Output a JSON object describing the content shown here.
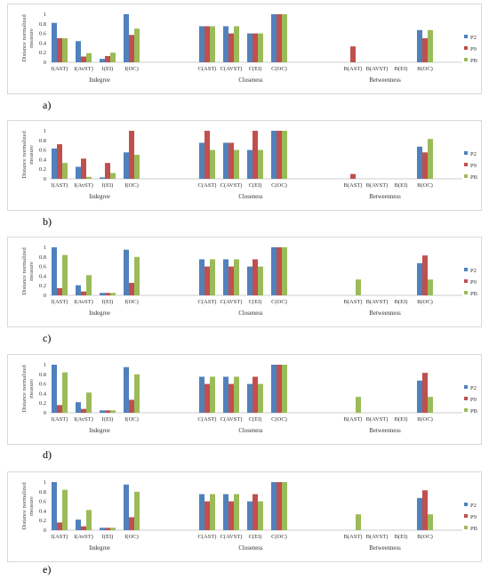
{
  "colors": {
    "P2": "#4f81bd",
    "P9": "#c0504d",
    "PB": "#9bbb59",
    "axis": "#999999"
  },
  "chart_data": [
    {
      "type": "bar",
      "panel_label": "a)",
      "ylabel": "Distance normalized measure",
      "ylim": [
        0,
        1
      ],
      "yticks": [
        "0",
        "0.2",
        "0.4",
        "0.6",
        "0.8",
        "1"
      ],
      "group_labels": [
        "Indegree",
        "Closeness",
        "Betweenness"
      ],
      "categories": [
        "I(AST)",
        "I(AvST)",
        "I(EI)",
        "I(OC)",
        "C(AST)",
        "C(AVST)",
        "C(EI)",
        "C(OC)",
        "B(AST)",
        "B(AVST)",
        "B(EI)",
        "B(OC)"
      ],
      "series": [
        {
          "name": "P2",
          "values": [
            0.82,
            0.44,
            0.07,
            1.0,
            0.75,
            0.75,
            0.6,
            1.0,
            0,
            0,
            0,
            0.67
          ]
        },
        {
          "name": "P9",
          "values": [
            0.5,
            0.12,
            0.13,
            0.57,
            0.75,
            0.6,
            0.6,
            1.0,
            0.33,
            0,
            0,
            0.5
          ]
        },
        {
          "name": "PB",
          "values": [
            0.5,
            0.19,
            0.2,
            0.7,
            0.75,
            0.75,
            0.6,
            1.0,
            0,
            0,
            0,
            0.67
          ]
        }
      ]
    },
    {
      "type": "bar",
      "panel_label": "b)",
      "ylabel": "Distance normalized measure",
      "ylim": [
        0,
        1
      ],
      "yticks": [
        "0",
        "0.2",
        "0.4",
        "0.6",
        "0.8",
        "1"
      ],
      "group_labels": [
        "Indegree",
        "Closeness",
        "Betweenness"
      ],
      "categories": [
        "I(AST)",
        "I(AvST)",
        "I(EI)",
        "I(OC)",
        "C(AST)",
        "C(AVST)",
        "C(EI)",
        "C(OC)",
        "B(AST)",
        "B(AVST)",
        "B(EI)",
        "B(OC)"
      ],
      "series": [
        {
          "name": "P2",
          "values": [
            0.63,
            0.25,
            0.03,
            0.55,
            0.75,
            0.75,
            0.6,
            1.0,
            0,
            0,
            0,
            0.67
          ]
        },
        {
          "name": "P9",
          "values": [
            0.72,
            0.42,
            0.33,
            1.0,
            1.0,
            0.75,
            1.0,
            1.0,
            0.1,
            0,
            0,
            0.55
          ]
        },
        {
          "name": "PB",
          "values": [
            0.33,
            0.04,
            0.12,
            0.5,
            0.6,
            0.6,
            0.6,
            1.0,
            0,
            0,
            0,
            0.83
          ]
        }
      ]
    },
    {
      "type": "bar",
      "panel_label": "c)",
      "ylabel": "Distance normalized measure",
      "ylim": [
        0,
        1
      ],
      "yticks": [
        "0",
        "0.2",
        "0.4",
        "0.6",
        "0.8",
        "1"
      ],
      "group_labels": [
        "Indegree",
        "Closeness",
        "Betweenness"
      ],
      "categories": [
        "I(AST)",
        "I(AvST)",
        "I(EI)",
        "I(OC)",
        "C(AST)",
        "C(AVST)",
        "C(EI)",
        "C(OC)",
        "B(AST)",
        "B(AVST)",
        "B(EI)",
        "B(OC)"
      ],
      "series": [
        {
          "name": "P2",
          "values": [
            1.0,
            0.21,
            0.05,
            0.95,
            0.75,
            0.75,
            0.6,
            1.0,
            0,
            0,
            0,
            0.67
          ]
        },
        {
          "name": "P9",
          "values": [
            0.15,
            0.08,
            0.05,
            0.26,
            0.6,
            0.6,
            0.75,
            1.0,
            0,
            0,
            0,
            0.83
          ]
        },
        {
          "name": "PB",
          "values": [
            0.84,
            0.42,
            0.05,
            0.8,
            0.75,
            0.75,
            0.6,
            1.0,
            0.33,
            0,
            0,
            0.33
          ]
        }
      ]
    },
    {
      "type": "bar",
      "panel_label": "d)",
      "ylabel": "Distance normalized measure",
      "ylim": [
        0,
        1
      ],
      "yticks": [
        "0",
        "0.2",
        "0.4",
        "0.6",
        "0.8",
        "1"
      ],
      "group_labels": [
        "Indegree",
        "Closeness",
        "Betweenness"
      ],
      "categories": [
        "I(AST)",
        "I(AvST)",
        "I(EI)",
        "I(OC)",
        "C(AST)",
        "C(AVST)",
        "C(EI)",
        "C(OC)",
        "B(AST)",
        "B(AVST)",
        "B(EI)",
        "B(OC)"
      ],
      "series": [
        {
          "name": "P2",
          "values": [
            1.0,
            0.22,
            0.05,
            0.95,
            0.75,
            0.75,
            0.6,
            1.0,
            0,
            0,
            0,
            0.67
          ]
        },
        {
          "name": "P9",
          "values": [
            0.16,
            0.08,
            0.05,
            0.27,
            0.6,
            0.6,
            0.75,
            1.0,
            0,
            0,
            0,
            0.83
          ]
        },
        {
          "name": "PB",
          "values": [
            0.84,
            0.42,
            0.05,
            0.8,
            0.75,
            0.75,
            0.6,
            1.0,
            0.33,
            0,
            0,
            0.33
          ]
        }
      ]
    },
    {
      "type": "bar",
      "panel_label": "e)",
      "ylabel": "Distance normalized measure",
      "ylim": [
        0,
        1
      ],
      "yticks": [
        "0",
        "0.2",
        "0.4",
        "0.6",
        "0.8",
        "1"
      ],
      "group_labels": [
        "Indegree",
        "Closeness",
        "Betweenness"
      ],
      "categories": [
        "I(AST)",
        "I(AvST)",
        "I(EI)",
        "I(OC)",
        "C(AST)",
        "C(AVST)",
        "C(EI)",
        "C(OC)",
        "B(AST)",
        "B(AVST)",
        "B(EI)",
        "B(OC)"
      ],
      "series": [
        {
          "name": "P2",
          "values": [
            1.0,
            0.22,
            0.05,
            0.95,
            0.75,
            0.75,
            0.6,
            1.0,
            0,
            0,
            0,
            0.67
          ]
        },
        {
          "name": "P9",
          "values": [
            0.16,
            0.08,
            0.05,
            0.27,
            0.6,
            0.6,
            0.75,
            1.0,
            0,
            0,
            0,
            0.83
          ]
        },
        {
          "name": "PB",
          "values": [
            0.84,
            0.42,
            0.05,
            0.8,
            0.75,
            0.75,
            0.6,
            1.0,
            0.33,
            0,
            0,
            0.33
          ]
        }
      ]
    }
  ]
}
